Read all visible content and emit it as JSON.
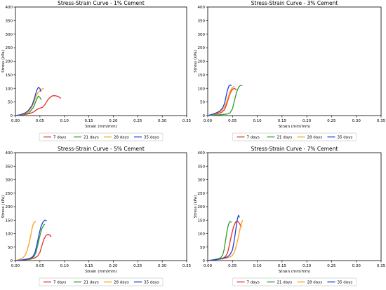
{
  "chart_data": [
    {
      "type": "line",
      "title": "Stress-Strain Curve - 1% Cement",
      "xlabel": "Strain (mm/mm)",
      "ylabel": "Stress (kPa)",
      "xlim": [
        0,
        0.35
      ],
      "ylim": [
        0,
        400
      ],
      "xticks": [
        "0.00",
        "0.05",
        "0.10",
        "0.15",
        "0.20",
        "0.25",
        "0.30",
        "0.35"
      ],
      "yticks": [
        "0",
        "50",
        "100",
        "150",
        "200",
        "250",
        "300",
        "350",
        "400"
      ],
      "legend": "bottom",
      "series": [
        {
          "name": "7 days",
          "color": "#e8302a",
          "points": [
            [
              0,
              0
            ],
            [
              0.01,
              2
            ],
            [
              0.02,
              4
            ],
            [
              0.03,
              8
            ],
            [
              0.038,
              14
            ],
            [
              0.042,
              20
            ],
            [
              0.048,
              26
            ],
            [
              0.055,
              30
            ],
            [
              0.06,
              40
            ],
            [
              0.065,
              55
            ],
            [
              0.07,
              66
            ],
            [
              0.076,
              73
            ],
            [
              0.082,
              73
            ],
            [
              0.088,
              70
            ],
            [
              0.093,
              63
            ]
          ]
        },
        {
          "name": "21 days",
          "color": "#2ca02c",
          "points": [
            [
              0,
              0
            ],
            [
              0.01,
              3
            ],
            [
              0.02,
              6
            ],
            [
              0.028,
              10
            ],
            [
              0.033,
              22
            ],
            [
              0.036,
              28
            ],
            [
              0.04,
              45
            ],
            [
              0.044,
              62
            ],
            [
              0.047,
              72
            ],
            [
              0.05,
              67
            ],
            [
              0.053,
              58
            ]
          ]
        },
        {
          "name": "28 days",
          "color": "#ff9f1a",
          "points": [
            [
              0,
              0
            ],
            [
              0.01,
              3
            ],
            [
              0.02,
              8
            ],
            [
              0.027,
              15
            ],
            [
              0.032,
              28
            ],
            [
              0.036,
              42
            ],
            [
              0.04,
              60
            ],
            [
              0.044,
              78
            ],
            [
              0.047,
              86
            ],
            [
              0.05,
              92
            ],
            [
              0.054,
              97
            ],
            [
              0.058,
              100
            ]
          ]
        },
        {
          "name": "35 days",
          "color": "#1f3fd6",
          "points": [
            [
              0,
              0
            ],
            [
              0.01,
              3
            ],
            [
              0.02,
              10
            ],
            [
              0.026,
              18
            ],
            [
              0.03,
              28
            ],
            [
              0.034,
              38
            ],
            [
              0.038,
              58
            ],
            [
              0.041,
              78
            ],
            [
              0.044,
              95
            ],
            [
              0.047,
              104
            ],
            [
              0.05,
              100
            ],
            [
              0.052,
              88
            ]
          ]
        }
      ]
    },
    {
      "type": "line",
      "title": "Stress-Strain Curve - 3% Cement",
      "xlabel": "Strain (mm/mm)",
      "ylabel": "Stress (kPa)",
      "xlim": [
        0,
        0.35
      ],
      "ylim": [
        0,
        400
      ],
      "xticks": [
        "0.00",
        "0.05",
        "0.10",
        "0.15",
        "0.20",
        "0.25",
        "0.30",
        "0.35"
      ],
      "yticks": [
        "0",
        "50",
        "100",
        "150",
        "200",
        "250",
        "300",
        "350",
        "400"
      ],
      "legend": "bottom",
      "series": [
        {
          "name": "7 days",
          "color": "#e8302a",
          "points": [
            [
              0,
              0
            ],
            [
              0.01,
              3
            ],
            [
              0.02,
              7
            ],
            [
              0.028,
              12
            ],
            [
              0.034,
              22
            ],
            [
              0.038,
              40
            ],
            [
              0.042,
              65
            ],
            [
              0.046,
              85
            ],
            [
              0.05,
              97
            ],
            [
              0.054,
              100
            ],
            [
              0.058,
              95
            ]
          ]
        },
        {
          "name": "21 days",
          "color": "#2ca02c",
          "points": [
            [
              0,
              0
            ],
            [
              0.015,
              2
            ],
            [
              0.03,
              4
            ],
            [
              0.04,
              6
            ],
            [
              0.045,
              10
            ],
            [
              0.05,
              25
            ],
            [
              0.054,
              55
            ],
            [
              0.058,
              85
            ],
            [
              0.062,
              103
            ],
            [
              0.066,
              112
            ],
            [
              0.07,
              110
            ]
          ]
        },
        {
          "name": "28 days",
          "color": "#ff9f1a",
          "points": [
            [
              0,
              0
            ],
            [
              0.01,
              4
            ],
            [
              0.02,
              10
            ],
            [
              0.028,
              18
            ],
            [
              0.034,
              32
            ],
            [
              0.038,
              50
            ],
            [
              0.042,
              72
            ],
            [
              0.046,
              92
            ],
            [
              0.05,
              104
            ],
            [
              0.054,
              108
            ]
          ]
        },
        {
          "name": "35 days",
          "color": "#1f3fd6",
          "points": [
            [
              0,
              0
            ],
            [
              0.008,
              4
            ],
            [
              0.016,
              9
            ],
            [
              0.024,
              16
            ],
            [
              0.03,
              28
            ],
            [
              0.034,
              45
            ],
            [
              0.037,
              70
            ],
            [
              0.04,
              95
            ],
            [
              0.043,
              110
            ],
            [
              0.046,
              113
            ],
            [
              0.048,
              110
            ]
          ]
        }
      ]
    },
    {
      "type": "line",
      "title": "Stress-Strain Curve - 5% Cement",
      "xlabel": "Strain (mm/mm)",
      "ylabel": "Stress (kPa)",
      "xlim": [
        0,
        0.35
      ],
      "ylim": [
        0,
        400
      ],
      "xticks": [
        "0.00",
        "0.05",
        "0.10",
        "0.15",
        "0.20",
        "0.25",
        "0.30",
        "0.35"
      ],
      "yticks": [
        "0",
        "50",
        "100",
        "150",
        "200",
        "250",
        "300",
        "350",
        "400"
      ],
      "legend": "bottom",
      "series": [
        {
          "name": "7 days",
          "color": "#e8302a",
          "points": [
            [
              0,
              0
            ],
            [
              0.015,
              2
            ],
            [
              0.03,
              5
            ],
            [
              0.04,
              10
            ],
            [
              0.046,
              18
            ],
            [
              0.05,
              30
            ],
            [
              0.054,
              55
            ],
            [
              0.058,
              78
            ],
            [
              0.062,
              92
            ],
            [
              0.066,
              97
            ],
            [
              0.07,
              95
            ],
            [
              0.073,
              88
            ]
          ]
        },
        {
          "name": "21 days",
          "color": "#2ca02c",
          "points": [
            [
              0,
              0
            ],
            [
              0.015,
              3
            ],
            [
              0.025,
              5
            ],
            [
              0.033,
              8
            ],
            [
              0.038,
              15
            ],
            [
              0.042,
              30
            ],
            [
              0.046,
              60
            ],
            [
              0.05,
              92
            ],
            [
              0.054,
              118
            ],
            [
              0.058,
              132
            ],
            [
              0.06,
              135
            ]
          ]
        },
        {
          "name": "28 days",
          "color": "#ff9f1a",
          "points": [
            [
              0,
              0
            ],
            [
              0.008,
              4
            ],
            [
              0.015,
              10
            ],
            [
              0.02,
              20
            ],
            [
              0.024,
              38
            ],
            [
              0.028,
              65
            ],
            [
              0.032,
              100
            ],
            [
              0.035,
              128
            ],
            [
              0.038,
              142
            ],
            [
              0.042,
              145
            ]
          ]
        },
        {
          "name": "35 days",
          "color": "#1f3fd6",
          "points": [
            [
              0,
              0
            ],
            [
              0.015,
              3
            ],
            [
              0.025,
              6
            ],
            [
              0.032,
              10
            ],
            [
              0.036,
              16
            ],
            [
              0.04,
              30
            ],
            [
              0.044,
              60
            ],
            [
              0.048,
              95
            ],
            [
              0.052,
              125
            ],
            [
              0.056,
              142
            ],
            [
              0.06,
              150
            ],
            [
              0.064,
              148
            ]
          ]
        }
      ]
    },
    {
      "type": "line",
      "title": "Stress-Strain Curve - 7% Cement",
      "xlabel": "Strain (mm/mm)",
      "ylabel": "Stress (kPa)",
      "xlim": [
        0,
        0.35
      ],
      "ylim": [
        0,
        400
      ],
      "xticks": [
        "0.00",
        "0.05",
        "0.10",
        "0.15",
        "0.20",
        "0.25",
        "0.30",
        "0.35"
      ],
      "yticks": [
        "0",
        "50",
        "100",
        "150",
        "200",
        "250",
        "300",
        "350",
        "400"
      ],
      "legend": "bottom",
      "series": [
        {
          "name": "7 days",
          "color": "#e8302a",
          "points": [
            [
              0,
              0
            ],
            [
              0.015,
              3
            ],
            [
              0.025,
              6
            ],
            [
              0.032,
              10
            ],
            [
              0.036,
              16
            ],
            [
              0.04,
              28
            ],
            [
              0.044,
              60
            ],
            [
              0.048,
              95
            ],
            [
              0.052,
              125
            ],
            [
              0.056,
              142
            ],
            [
              0.06,
              147
            ],
            [
              0.064,
              138
            ],
            [
              0.068,
              125
            ]
          ]
        },
        {
          "name": "21 days",
          "color": "#2ca02c",
          "points": [
            [
              0,
              0
            ],
            [
              0.01,
              3
            ],
            [
              0.02,
              6
            ],
            [
              0.026,
              10
            ],
            [
              0.03,
              20
            ],
            [
              0.033,
              40
            ],
            [
              0.036,
              75
            ],
            [
              0.039,
              110
            ],
            [
              0.042,
              135
            ],
            [
              0.045,
              145
            ],
            [
              0.048,
              142
            ]
          ]
        },
        {
          "name": "28 days",
          "color": "#ff9f1a",
          "points": [
            [
              0,
              0
            ],
            [
              0.015,
              3
            ],
            [
              0.03,
              6
            ],
            [
              0.04,
              10
            ],
            [
              0.048,
              16
            ],
            [
              0.053,
              28
            ],
            [
              0.057,
              50
            ],
            [
              0.061,
              80
            ],
            [
              0.065,
              115
            ],
            [
              0.068,
              140
            ],
            [
              0.071,
              150
            ]
          ]
        },
        {
          "name": "35 days",
          "color": "#1f3fd6",
          "points": [
            [
              0,
              0
            ],
            [
              0.015,
              3
            ],
            [
              0.03,
              8
            ],
            [
              0.04,
              14
            ],
            [
              0.045,
              22
            ],
            [
              0.05,
              40
            ],
            [
              0.054,
              80
            ],
            [
              0.057,
              120
            ],
            [
              0.06,
              155
            ],
            [
              0.062,
              168
            ],
            [
              0.064,
              160
            ]
          ]
        }
      ]
    }
  ]
}
